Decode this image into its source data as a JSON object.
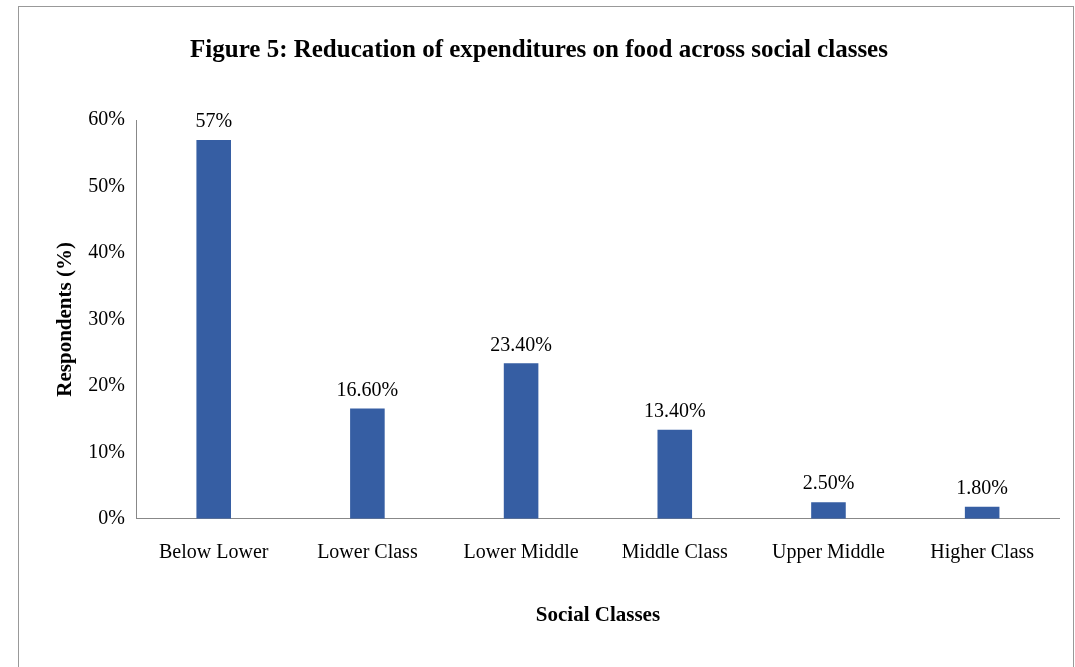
{
  "chart_data": {
    "type": "bar",
    "title": "Figure 5: Reducation of expenditures on food across social classes",
    "xlabel": "Social Classes",
    "ylabel": "Respondents (%)",
    "categories": [
      "Below Lower",
      "Lower Class",
      "Lower Middle",
      "Middle Class",
      "Upper Middle",
      "Higher Class"
    ],
    "values": [
      57,
      16.6,
      23.4,
      13.4,
      2.5,
      1.8
    ],
    "color": "#365ea3",
    "value_labels": [
      "57%",
      "16.60%",
      "23.40%",
      "13.40%",
      "2.50%",
      "1.80%"
    ],
    "ylim": [
      0,
      60
    ],
    "yticks": [
      {
        "value": 0,
        "label": "0%"
      },
      {
        "value": 10,
        "label": "10%"
      },
      {
        "value": 20,
        "label": "20%"
      },
      {
        "value": 30,
        "label": "30%"
      },
      {
        "value": 40,
        "label": "40%"
      },
      {
        "value": 50,
        "label": "50%"
      },
      {
        "value": 60,
        "label": "60%"
      }
    ],
    "grid": false,
    "legend": false
  }
}
